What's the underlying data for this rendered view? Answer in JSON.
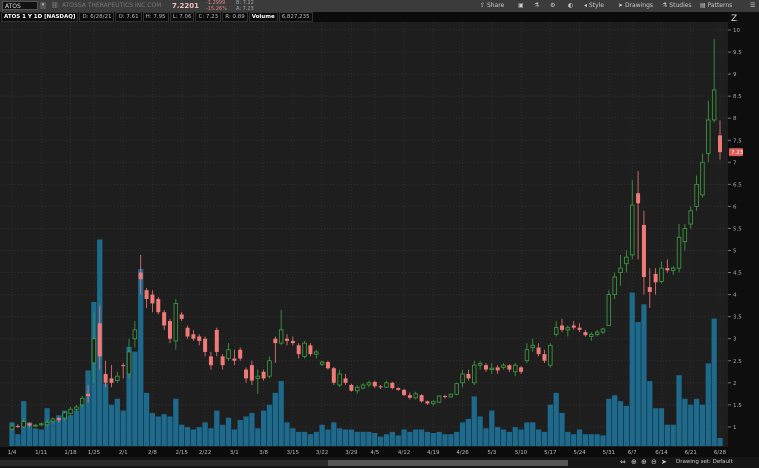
{
  "toolbar": {
    "symbol": "ATOS",
    "company": "ATOSSA THERAPEUTICS INC COM",
    "last_price": "7.2201",
    "change": "-1.2999",
    "change_pct": "-15.26%",
    "bid": "B: 7.22",
    "ask": "A: 7.23",
    "share_label": "Share",
    "style_label": "Style",
    "drawings_label": "Drawings",
    "studies_label": "Studies",
    "patterns_label": "Patterns",
    "icons": [
      "share-icon",
      "snapshot-icon",
      "flask-icon",
      "gear-icon",
      "drawing-set-icon",
      "style-icon",
      "cursor-icon",
      "studies-icon",
      "patterns-icon",
      "menu-icon"
    ]
  },
  "info": {
    "title": "ATOS 1 Y 1D [NASDAQ]",
    "date": "D: 6/28/21",
    "open": "O: 7.61",
    "high": "H: 7.95",
    "low": "L: 7.06",
    "close": "C: 7.23",
    "range": "R: 0.89",
    "volume_label": "Volume",
    "volume_value": "6,827,235"
  },
  "footer": {
    "drawing_set": "Drawing set: Default"
  },
  "colors": {
    "up": "#3fa142",
    "down": "#f07a78",
    "volume": "#1e6a8d",
    "background": "#1e1e1e",
    "last_price_tag": "#e05a5a"
  },
  "chart_data": {
    "type": "candlestick",
    "ylim": [
      0.75,
      10.2
    ],
    "y_ticks": [
      "10",
      "9.5",
      "9",
      "8.5",
      "8",
      "7.5",
      "7",
      "6.5",
      "6",
      "5.5",
      "5",
      "4.5",
      "4",
      "3.5",
      "3",
      "2.5",
      "2",
      "1.5",
      "1"
    ],
    "last_price_label": "7.23",
    "x_ticks": [
      "1/4",
      "1/11",
      "1/18",
      "1/25",
      "2/1",
      "2/8",
      "2/15",
      "2/22",
      "3/1",
      "3/8",
      "3/15",
      "3/22",
      "3/29",
      "4/5",
      "4/12",
      "4/19",
      "4/26",
      "5/3",
      "5/10",
      "5/17",
      "5/24",
      "5/31",
      "6/7",
      "6/14",
      "6/21",
      "6/28"
    ],
    "x_tick_day_index": [
      0,
      5,
      10,
      14,
      19,
      24,
      29,
      33,
      38,
      43,
      48,
      53,
      58,
      62,
      67,
      72,
      77,
      82,
      87,
      92,
      97,
      102,
      106,
      111,
      116,
      121
    ],
    "volume_units": "millions",
    "candles_ohlcv": [
      [
        0.95,
        1.1,
        0.92,
        1.02,
        20
      ],
      [
        1.02,
        1.06,
        0.98,
        1.0,
        10
      ],
      [
        1.0,
        1.2,
        0.98,
        1.12,
        38
      ],
      [
        1.08,
        1.1,
        0.99,
        1.03,
        20
      ],
      [
        1.03,
        1.06,
        1.0,
        1.04,
        15
      ],
      [
        1.06,
        1.1,
        1.02,
        1.07,
        14
      ],
      [
        1.05,
        1.16,
        1.0,
        1.1,
        32
      ],
      [
        1.12,
        1.22,
        1.08,
        1.18,
        22
      ],
      [
        1.2,
        1.22,
        1.1,
        1.15,
        26
      ],
      [
        1.2,
        1.35,
        1.15,
        1.32,
        30
      ],
      [
        1.3,
        1.45,
        1.25,
        1.4,
        26
      ],
      [
        1.4,
        1.5,
        1.35,
        1.45,
        30
      ],
      [
        1.5,
        1.7,
        1.45,
        1.65,
        35
      ],
      [
        1.75,
        1.95,
        1.55,
        1.7,
        64
      ],
      [
        2.45,
        3.6,
        2.0,
        3.0,
        122
      ],
      [
        3.35,
        3.75,
        2.3,
        2.6,
        175
      ],
      [
        2.2,
        2.5,
        1.9,
        2.0,
        53
      ],
      [
        2.1,
        2.4,
        1.9,
        2.0,
        35
      ],
      [
        2.05,
        2.25,
        2.0,
        2.15,
        40
      ],
      [
        2.4,
        2.45,
        2.1,
        2.38,
        30
      ],
      [
        2.2,
        3.0,
        2.1,
        2.7,
        84
      ],
      [
        3.0,
        3.4,
        2.8,
        3.2,
        80
      ],
      [
        4.5,
        4.9,
        4.0,
        4.35,
        150
      ],
      [
        4.1,
        4.15,
        3.7,
        3.9,
        45
      ],
      [
        4.0,
        4.1,
        3.6,
        3.8,
        28
      ],
      [
        3.9,
        3.95,
        3.55,
        3.6,
        25
      ],
      [
        3.6,
        3.65,
        3.2,
        3.3,
        27
      ],
      [
        3.4,
        3.45,
        2.9,
        3.0,
        25
      ],
      [
        2.95,
        3.9,
        2.75,
        3.8,
        40
      ],
      [
        3.55,
        3.6,
        3.4,
        3.45,
        18
      ],
      [
        3.25,
        3.3,
        3.0,
        3.05,
        16
      ],
      [
        3.1,
        3.2,
        2.95,
        3.0,
        14
      ],
      [
        3.05,
        3.1,
        2.85,
        2.95,
        16
      ],
      [
        3.0,
        3.05,
        2.6,
        2.7,
        20
      ],
      [
        2.6,
        2.7,
        2.3,
        2.4,
        15
      ],
      [
        3.2,
        3.25,
        2.6,
        2.7,
        30
      ],
      [
        2.6,
        2.65,
        2.3,
        2.4,
        18
      ],
      [
        2.55,
        2.9,
        2.5,
        2.75,
        24
      ],
      [
        2.55,
        2.75,
        2.4,
        2.5,
        14
      ],
      [
        2.75,
        2.8,
        2.5,
        2.55,
        22
      ],
      [
        2.3,
        2.35,
        2.0,
        2.1,
        25
      ],
      [
        2.4,
        2.5,
        1.95,
        2.05,
        28
      ],
      [
        2.1,
        2.3,
        1.75,
        2.15,
        15
      ],
      [
        2.25,
        2.3,
        2.05,
        2.1,
        30
      ],
      [
        2.15,
        2.6,
        2.1,
        2.5,
        35
      ],
      [
        3.0,
        3.05,
        2.45,
        2.9,
        45
      ],
      [
        2.9,
        3.65,
        2.85,
        3.2,
        55
      ],
      [
        3.0,
        3.1,
        2.85,
        2.95,
        20
      ],
      [
        2.95,
        3.05,
        2.85,
        2.9,
        15
      ],
      [
        2.85,
        2.9,
        2.55,
        2.65,
        12
      ],
      [
        2.6,
        2.95,
        2.55,
        2.9,
        12
      ],
      [
        2.85,
        2.9,
        2.6,
        2.65,
        10
      ],
      [
        2.65,
        2.75,
        2.55,
        2.7,
        12
      ],
      [
        2.42,
        2.5,
        2.38,
        2.47,
        18
      ],
      [
        2.47,
        2.5,
        2.3,
        2.33,
        14
      ],
      [
        2.33,
        2.36,
        1.95,
        2.0,
        20
      ],
      [
        1.95,
        2.3,
        1.9,
        2.2,
        15
      ],
      [
        2.1,
        2.2,
        1.95,
        2.0,
        14
      ],
      [
        1.95,
        1.98,
        1.8,
        1.82,
        14
      ],
      [
        1.82,
        1.95,
        1.75,
        1.9,
        12
      ],
      [
        1.88,
        2.0,
        1.85,
        1.95,
        12
      ],
      [
        1.95,
        2.05,
        1.9,
        2.0,
        12
      ],
      [
        2.02,
        2.05,
        1.88,
        1.92,
        11
      ],
      [
        1.92,
        1.95,
        1.86,
        1.9,
        8
      ],
      [
        1.9,
        2.05,
        1.88,
        2.0,
        10
      ],
      [
        2.0,
        2.02,
        1.85,
        1.88,
        12
      ],
      [
        1.88,
        1.9,
        1.82,
        1.84,
        9
      ],
      [
        1.84,
        1.86,
        1.7,
        1.72,
        14
      ],
      [
        1.72,
        1.78,
        1.62,
        1.66,
        12
      ],
      [
        1.66,
        1.8,
        1.62,
        1.75,
        14
      ],
      [
        1.72,
        1.74,
        1.55,
        1.58,
        14
      ],
      [
        1.58,
        1.6,
        1.5,
        1.53,
        12
      ],
      [
        1.53,
        1.6,
        1.48,
        1.58,
        11
      ],
      [
        1.56,
        1.72,
        1.54,
        1.7,
        12
      ],
      [
        1.7,
        1.73,
        1.64,
        1.68,
        10
      ],
      [
        1.68,
        1.76,
        1.66,
        1.74,
        10
      ],
      [
        1.74,
        2.0,
        1.72,
        1.98,
        12
      ],
      [
        2.0,
        2.3,
        1.9,
        2.2,
        20
      ],
      [
        2.2,
        2.3,
        2.05,
        2.1,
        23
      ],
      [
        2.0,
        2.5,
        1.95,
        2.4,
        42
      ],
      [
        2.4,
        2.5,
        2.3,
        2.44,
        25
      ],
      [
        2.4,
        2.45,
        2.25,
        2.3,
        15
      ],
      [
        2.3,
        2.45,
        2.2,
        2.33,
        30
      ],
      [
        2.35,
        2.4,
        2.2,
        2.28,
        16
      ],
      [
        2.35,
        2.45,
        2.3,
        2.4,
        14
      ],
      [
        2.4,
        2.42,
        2.25,
        2.3,
        12
      ],
      [
        2.25,
        2.45,
        2.15,
        2.4,
        16
      ],
      [
        2.35,
        2.38,
        2.2,
        2.25,
        14
      ],
      [
        2.5,
        2.9,
        2.45,
        2.75,
        20
      ],
      [
        2.8,
        3.0,
        2.7,
        2.85,
        20
      ],
      [
        2.8,
        2.9,
        2.6,
        2.65,
        14
      ],
      [
        2.65,
        2.75,
        2.45,
        2.5,
        12
      ],
      [
        2.4,
        2.9,
        2.35,
        2.85,
        35
      ],
      [
        3.1,
        3.4,
        3.05,
        3.25,
        45
      ],
      [
        3.3,
        3.45,
        3.15,
        3.2,
        28
      ],
      [
        3.2,
        3.3,
        3.05,
        3.25,
        12
      ],
      [
        3.3,
        3.4,
        3.2,
        3.25,
        10
      ],
      [
        3.25,
        3.35,
        3.15,
        3.2,
        14
      ],
      [
        3.15,
        3.2,
        3.05,
        3.08,
        10
      ],
      [
        3.05,
        3.15,
        2.95,
        3.1,
        10
      ],
      [
        3.1,
        3.2,
        3.05,
        3.15,
        10
      ],
      [
        3.15,
        3.25,
        3.1,
        3.22,
        9
      ],
      [
        3.3,
        4.1,
        3.3,
        4.0,
        40
      ],
      [
        4.0,
        4.5,
        3.9,
        4.4,
        43
      ],
      [
        4.5,
        4.9,
        4.2,
        4.6,
        38
      ],
      [
        4.7,
        5.0,
        4.5,
        4.85,
        34
      ],
      [
        4.9,
        6.6,
        4.8,
        6.03,
        130
      ],
      [
        6.3,
        6.8,
        4.8,
        6.07,
        105
      ],
      [
        5.58,
        5.9,
        4.0,
        4.4,
        120
      ],
      [
        4.17,
        4.6,
        3.7,
        4.06,
        55
      ],
      [
        4.47,
        4.6,
        4.0,
        4.28,
        32
      ],
      [
        4.3,
        4.75,
        4.25,
        4.6,
        32
      ],
      [
        4.6,
        4.8,
        4.5,
        4.55,
        18
      ],
      [
        4.55,
        4.65,
        4.45,
        4.6,
        18
      ],
      [
        4.6,
        5.6,
        4.5,
        5.3,
        60
      ],
      [
        5.2,
        5.6,
        5.0,
        5.5,
        40
      ],
      [
        5.6,
        6.0,
        5.5,
        5.9,
        35
      ],
      [
        6.0,
        6.7,
        5.9,
        6.5,
        40
      ],
      [
        6.26,
        7.2,
        6.2,
        7.0,
        35
      ],
      [
        7.2,
        8.4,
        7.0,
        7.96,
        70
      ],
      [
        7.96,
        9.8,
        7.9,
        8.64,
        108
      ],
      [
        7.61,
        7.95,
        7.06,
        7.23,
        6.83
      ]
    ]
  }
}
